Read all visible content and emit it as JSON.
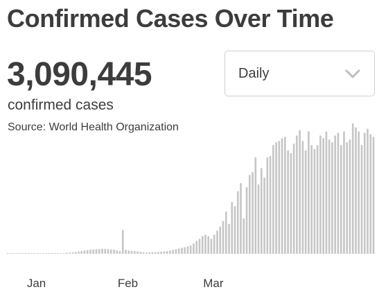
{
  "header": {
    "title": "Confirmed Cases Over Time"
  },
  "summary": {
    "total": "3,090,445",
    "caption": "confirmed cases",
    "source": "Source: World Health Organization"
  },
  "period_select": {
    "selected": "Daily",
    "icon": "chevron-down-icon"
  },
  "colors": {
    "bar": "#c6c6c6",
    "text": "#3c3c3c",
    "border": "#cfcfcf"
  },
  "chart_data": {
    "type": "bar",
    "xlabel": "",
    "ylabel": "",
    "grid": false,
    "legend": "none",
    "ylim": [
      0,
      100000
    ],
    "tick_labels": [
      {
        "label": "Jan",
        "index": 10
      },
      {
        "label": "Feb",
        "index": 41
      },
      {
        "label": "Mar",
        "index": 70
      }
    ],
    "series": [
      {
        "values": [
          0,
          0,
          0,
          0,
          0,
          0,
          0,
          0,
          0,
          0,
          0,
          0,
          0,
          0,
          0,
          0,
          0,
          0,
          0,
          300,
          700,
          900,
          1100,
          1400,
          1700,
          2000,
          2400,
          2700,
          3000,
          3200,
          3300,
          3400,
          3600,
          3600,
          3400,
          3200,
          3100,
          2500,
          2100,
          17500,
          3000,
          2400,
          2200,
          1900,
          1700,
          1500,
          1100,
          900,
          1100,
          1200,
          1300,
          1400,
          1600,
          1800,
          1900,
          2300,
          2900,
          3300,
          3800,
          4400,
          4800,
          5500,
          6200,
          7500,
          9500,
          11000,
          13000,
          14000,
          13000,
          11000,
          14000,
          17000,
          20000,
          24000,
          31000,
          22000,
          38000,
          35000,
          46000,
          52000,
          26000,
          49000,
          58000,
          60000,
          71000,
          51000,
          63000,
          56000,
          71000,
          72000,
          80000,
          82000,
          83000,
          85000,
          86000,
          76000,
          74000,
          81000,
          87000,
          91000,
          83000,
          76000,
          90000,
          80000,
          77000,
          80000,
          87000,
          85000,
          90000,
          84000,
          82000,
          87000,
          89000,
          80000,
          90000,
          82000,
          84000,
          96000,
          93000,
          90000,
          80000,
          89000,
          92000,
          88000,
          86000
        ]
      }
    ]
  }
}
